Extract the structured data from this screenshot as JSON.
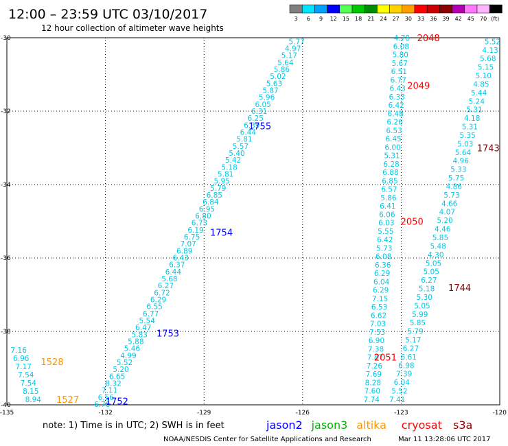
{
  "header": {
    "title": "12:00 – 23:59 UTC 03/10/2017",
    "subtitle": "12 hour collection of altimeter wave heights"
  },
  "legend": {
    "unit": "(ft)",
    "bins": [
      {
        "label": "3",
        "color": "#808080"
      },
      {
        "label": "6",
        "color": "#00e5ff"
      },
      {
        "label": "9",
        "color": "#00a0ff"
      },
      {
        "label": "12",
        "color": "#0000ff"
      },
      {
        "label": "15",
        "color": "#55ff55"
      },
      {
        "label": "18",
        "color": "#00c800"
      },
      {
        "label": "21",
        "color": "#008c00"
      },
      {
        "label": "24",
        "color": "#ffff00"
      },
      {
        "label": "27",
        "color": "#ffd200"
      },
      {
        "label": "30",
        "color": "#ffa000"
      },
      {
        "label": "33",
        "color": "#ff0000"
      },
      {
        "label": "36",
        "color": "#cc0000"
      },
      {
        "label": "39",
        "color": "#8b0000"
      },
      {
        "label": "42",
        "color": "#b400b4"
      },
      {
        "label": "45",
        "color": "#ff78ff"
      },
      {
        "label": "70",
        "color": "#ffb4ff"
      },
      {
        "label": "",
        "color": "#000000"
      }
    ]
  },
  "footer": {
    "note": "note: 1) Time is in UTC; 2) SWH is in feet",
    "credit": "NOAA/NESDIS Center for Satellite Applications and Research",
    "timestamp": "Mar 11 13:28:06 UTC 2017",
    "satellites": [
      {
        "name": "jason2",
        "color": "#0000ff"
      },
      {
        "name": "jason3",
        "color": "#00b400"
      },
      {
        "name": "altika",
        "color": "#ff9600"
      },
      {
        "name": "cryosat",
        "color": "#ff0000"
      },
      {
        "name": "s3a",
        "color": "#8b0000"
      }
    ]
  },
  "chart_data": {
    "type": "scatter",
    "title": "12:00 – 23:59 UTC 03/10/2017",
    "subtitle": "12 hour collection of altimeter wave heights",
    "xlim": [
      -135,
      -120
    ],
    "ylim": [
      -40,
      -30
    ],
    "x_ticks": [
      "-135",
      "-132",
      "-129",
      "-126",
      "-123",
      "-120"
    ],
    "y_ticks": [
      "-30",
      "-32",
      "-34",
      "-36",
      "-38",
      "-40"
    ],
    "x_tick_values": [
      -135,
      -132,
      -129,
      -126,
      -123,
      -120
    ],
    "y_tick_values": [
      -30,
      -32,
      -34,
      -36,
      -38,
      -40
    ],
    "grid": true,
    "value_color": "#00c8e6",
    "tracks": [
      {
        "satellite": "jason2",
        "start": [
          -126.18,
          -30.1
        ],
        "end": [
          -132.1,
          -39.98
        ],
        "values": [
          "5.77",
          "4.97",
          "5.17",
          "5.64",
          "5.86",
          "5.02",
          "5.63",
          "5.87",
          "5.96",
          "6.05",
          "6.31",
          "6.25",
          "6.39",
          "6.44",
          "5.81",
          "5.57",
          "5.40",
          "5.42",
          "5.18",
          "5.81",
          "5.95",
          "5.79",
          "6.85",
          "6.84",
          "6.95",
          "6.80",
          "6.73",
          "6.19",
          "6.75",
          "7.07",
          "6.89",
          "6.43",
          "6.37",
          "6.44",
          "5.68",
          "6.27",
          "6.72",
          "6.29",
          "6.55",
          "6.77",
          "5.54",
          "6.47",
          "5.83",
          "5.88",
          "5.46",
          "4.99",
          "5.52",
          "5.20",
          "6.65",
          "8.32",
          "7.11",
          "6.56",
          "6.76"
        ],
        "passes": [
          {
            "label": "1755",
            "pos": [
              -127.3,
              -32.4
            ]
          },
          {
            "label": "1754",
            "pos": [
              -128.47,
              -35.3
            ]
          },
          {
            "label": "1753",
            "pos": [
              -130.1,
              -38.05
            ]
          },
          {
            "label": "1752",
            "pos": [
              -131.65,
              -39.9
            ]
          }
        ]
      },
      {
        "satellite": "altika",
        "start": [
          -134.64,
          -38.5
        ],
        "end": [
          -134.2,
          -39.85
        ],
        "values": [
          "7.16",
          "6.96",
          "7.17",
          "7.54",
          "7.54",
          "8.15",
          "8.94"
        ],
        "passes": [
          {
            "label": "1528",
            "pos": [
              -133.62,
              -38.82
            ]
          },
          {
            "label": "1527",
            "pos": [
              -133.15,
              -39.85
            ]
          }
        ]
      },
      {
        "satellite": "cryosat",
        "start": [
          -122.98,
          -30.0
        ],
        "end": [
          -123.9,
          -39.85
        ],
        "values": [
          "4.78",
          "6.08",
          "5.80",
          "5.67",
          "6.51",
          "6.77",
          "6.43",
          "6.33",
          "6.42",
          "6.48",
          "6.26",
          "6.53",
          "6.45",
          "6.00",
          "5.31",
          "6.28",
          "6.88",
          "6.85",
          "6.57",
          "5.86",
          "6.41",
          "6.06",
          "6.03",
          "5.55",
          "6.42",
          "5.73",
          "6.08",
          "6.36",
          "6.29",
          "6.04",
          "6.29",
          "7.15",
          "6.53",
          "6.62",
          "7.03",
          "7.53",
          "6.90",
          "7.38",
          "7.87",
          "7.26",
          "7.69",
          "8.28",
          "7.60",
          "7.74"
        ],
        "passes": [
          {
            "label": "2048",
            "pos": [
              -122.17,
              -30.0
            ]
          },
          {
            "label": "2049",
            "pos": [
              -122.47,
              -31.3
            ]
          },
          {
            "label": "2050",
            "pos": [
              -122.67,
              -35.0
            ]
          },
          {
            "label": "2051",
            "pos": [
              -123.48,
              -38.7
            ]
          }
        ]
      },
      {
        "satellite": "s3a",
        "start": [
          -120.22,
          -30.1
        ],
        "end": [
          -123.12,
          -39.85
        ],
        "values": [
          "5.52",
          "4.13",
          "5.68",
          "5.15",
          "5.10",
          "4.85",
          "5.44",
          "5.24",
          "5.31",
          "4.18",
          "5.31",
          "5.35",
          "5.03",
          "5.64",
          "4.96",
          "5.33",
          "5.75",
          "4.86",
          "5.73",
          "4.66",
          "4.07",
          "5.20",
          "4.46",
          "5.85",
          "5.48",
          "4.30",
          "5.05",
          "5.05",
          "6.27",
          "5.18",
          "5.30",
          "5.05",
          "5.99",
          "5.85",
          "5.79",
          "5.17",
          "6.27",
          "6.61",
          "6.98",
          "7.39",
          "6.04",
          "5.52",
          "7.41"
        ],
        "passes": [
          {
            "label": "1743",
            "pos": [
              -120.35,
              -33.0
            ]
          },
          {
            "label": "1744",
            "pos": [
              -121.22,
              -36.8
            ]
          }
        ]
      }
    ]
  }
}
